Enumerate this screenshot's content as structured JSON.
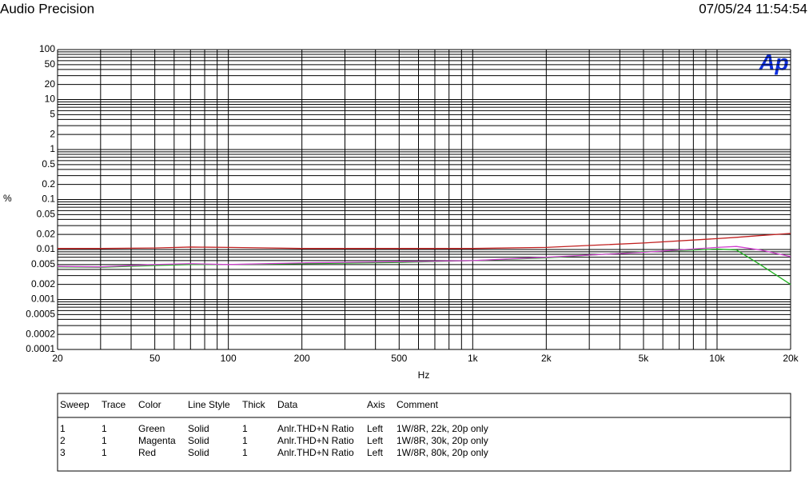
{
  "header": {
    "title": "Audio Precision",
    "timestamp": "07/05/24 11:54:54",
    "logo": "Ap"
  },
  "chart_data": {
    "type": "line",
    "log_x": true,
    "log_y": true,
    "grid": true,
    "y_label": "%",
    "x_label": "Hz",
    "xlim": [
      20,
      20000
    ],
    "ylim": [
      0.0001,
      100
    ],
    "xticks": [
      20,
      50,
      100,
      200,
      500,
      {
        "value": 1000,
        "label": "1k"
      },
      {
        "value": 2000,
        "label": "2k"
      },
      {
        "value": 5000,
        "label": "5k"
      },
      {
        "value": 10000,
        "label": "10k"
      },
      {
        "value": 20000,
        "label": "20k"
      }
    ],
    "xminorticks": [
      30,
      40,
      60,
      70,
      80,
      90,
      300,
      400,
      600,
      700,
      800,
      900,
      3000,
      4000,
      6000,
      7000,
      8000,
      9000
    ],
    "yticks": [
      100,
      50,
      20,
      10,
      5,
      2,
      1,
      0.5,
      0.2,
      0.1,
      0.05,
      0.02,
      0.01,
      0.005,
      0.002,
      0.001,
      0.0005,
      0.0002,
      0.0001
    ],
    "yminorticks": [
      0.0003,
      0.0004,
      0.0006,
      0.0007,
      0.0008,
      0.0009,
      0.003,
      0.004,
      0.006,
      0.007,
      0.008,
      0.009,
      0.03,
      0.04,
      0.06,
      0.07,
      0.08,
      0.09,
      0.3,
      0.4,
      0.6,
      0.7,
      0.8,
      0.9,
      3,
      4,
      6,
      7,
      8,
      9,
      30,
      40,
      60,
      70,
      80,
      90
    ],
    "x": [
      20,
      30,
      50,
      70,
      100,
      200,
      500,
      1000,
      2000,
      5000,
      10000,
      12000,
      15000,
      20000
    ],
    "series": [
      {
        "name": "Green",
        "color": "#20b020",
        "values": [
          0.0045,
          0.0044,
          0.0048,
          0.005,
          0.005,
          0.0052,
          0.0055,
          0.006,
          0.0068,
          0.009,
          0.0102,
          0.0098,
          0.005,
          0.002
        ]
      },
      {
        "name": "Magenta",
        "color": "#d040d0",
        "values": [
          0.0046,
          0.0045,
          0.005,
          0.0052,
          0.005,
          0.0054,
          0.0057,
          0.006,
          0.007,
          0.0088,
          0.011,
          0.0115,
          0.0098,
          0.0072
        ]
      },
      {
        "name": "Red",
        "color": "#c02020",
        "values": [
          0.0105,
          0.0105,
          0.0107,
          0.0112,
          0.011,
          0.0105,
          0.0105,
          0.0105,
          0.011,
          0.0135,
          0.0165,
          0.0175,
          0.019,
          0.021
        ]
      }
    ]
  },
  "table": {
    "columns": [
      "Sweep",
      "Trace",
      "Color",
      "Line Style",
      "Thick",
      "Data",
      "Axis",
      "Comment"
    ],
    "rows": [
      [
        1,
        1,
        "Green",
        "Solid",
        1,
        "Anlr.THD+N Ratio",
        "Left",
        "1W/8R, 22k, 20p only"
      ],
      [
        2,
        1,
        "Magenta",
        "Solid",
        1,
        "Anlr.THD+N Ratio",
        "Left",
        "1W/8R, 30k, 20p only"
      ],
      [
        3,
        1,
        "Red",
        "Solid",
        1,
        "Anlr.THD+N Ratio",
        "Left",
        "1W/8R, 80k, 20p only"
      ]
    ]
  }
}
